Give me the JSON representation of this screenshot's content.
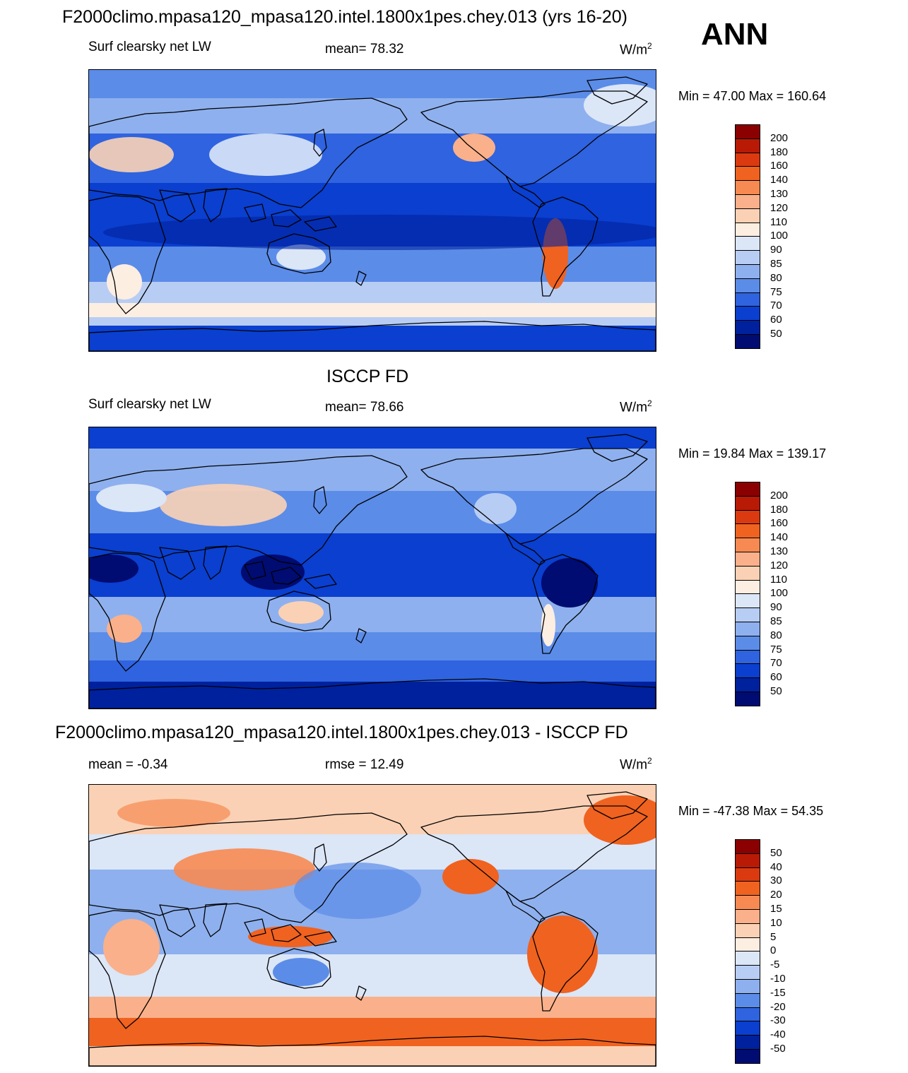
{
  "header": {
    "title": "F2000climo.mpasa120_mpasa120.intel.1800x1pes.chey.013 (yrs 16-20)",
    "season": "ANN"
  },
  "panels": [
    {
      "id": "model",
      "title": "",
      "left_text": "Surf clearsky net LW",
      "center_text": "mean=  78.32",
      "units_base": "W/m",
      "units_exp": "2",
      "minmax": "Min =  47.00 Max = 160.64",
      "colorbar_labels": [
        "200",
        "180",
        "160",
        "140",
        "130",
        "120",
        "110",
        "100",
        "90",
        "85",
        "80",
        "75",
        "70",
        "60",
        "50"
      ],
      "colorbar_colors": [
        "#8b0000",
        "#b81a06",
        "#db3a10",
        "#f0621f",
        "#f78a52",
        "#fab08a",
        "#fbd1b5",
        "#fdeee2",
        "#dbe6f7",
        "#b8cdf3",
        "#8eb0ee",
        "#5b8ce8",
        "#2f63df",
        "#0a3fcf",
        "#00219e",
        "#000c72"
      ],
      "field_scheme": "abs"
    },
    {
      "id": "obs",
      "title": "ISCCP FD",
      "left_text": "Surf clearsky net LW",
      "center_text": "mean=  78.66",
      "units_base": "W/m",
      "units_exp": "2",
      "minmax": "Min =  19.84 Max = 139.17",
      "colorbar_labels": [
        "200",
        "180",
        "160",
        "140",
        "130",
        "120",
        "110",
        "100",
        "90",
        "85",
        "80",
        "75",
        "70",
        "60",
        "50"
      ],
      "colorbar_colors": [
        "#8b0000",
        "#b81a06",
        "#db3a10",
        "#f0621f",
        "#f78a52",
        "#fab08a",
        "#fbd1b5",
        "#fdeee2",
        "#dbe6f7",
        "#b8cdf3",
        "#8eb0ee",
        "#5b8ce8",
        "#2f63df",
        "#0a3fcf",
        "#00219e",
        "#000c72"
      ],
      "field_scheme": "abs"
    },
    {
      "id": "diff",
      "title": "F2000climo.mpasa120_mpasa120.intel.1800x1pes.chey.013 - ISCCP FD",
      "left_text": "mean =  -0.34",
      "center_text": "rmse =  12.49",
      "units_base": "W/m",
      "units_exp": "2",
      "minmax": "Min = -47.38 Max =  54.35",
      "colorbar_labels": [
        "50",
        "40",
        "30",
        "20",
        "15",
        "10",
        "5",
        "0",
        "-5",
        "-10",
        "-15",
        "-20",
        "-30",
        "-40",
        "-50"
      ],
      "colorbar_colors": [
        "#8b0000",
        "#b81a06",
        "#db3a10",
        "#f0621f",
        "#f78a52",
        "#fab08a",
        "#fbd1b5",
        "#fdeee2",
        "#dbe6f7",
        "#b8cdf3",
        "#8eb0ee",
        "#5b8ce8",
        "#2f63df",
        "#0a3fcf",
        "#00219e",
        "#000c72"
      ],
      "field_scheme": "diff"
    }
  ]
}
